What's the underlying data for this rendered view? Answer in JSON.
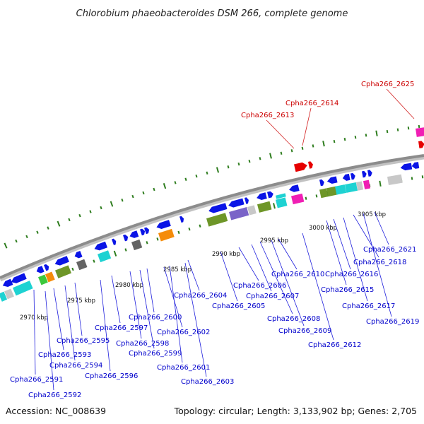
{
  "title": "Chlorobium phaeobacteroides DSM 266, complete genome",
  "accession": "Accession: NC_008639",
  "topology": "Topology: circular; Length: 3,133,902 bp; Genes: 2,705",
  "scale_labels": [
    "2970 kbp",
    "2975 kbp",
    "2980 kbp",
    "2985 kbp",
    "2990 kbp",
    "2995 kbp",
    "3000 kbp",
    "3005 kbp"
  ],
  "genes": [
    {
      "name": "Cpha266_2591",
      "highlight": false
    },
    {
      "name": "Cpha266_2592",
      "highlight": false
    },
    {
      "name": "Cpha266_2593",
      "highlight": false
    },
    {
      "name": "Cpha266_2594",
      "highlight": false
    },
    {
      "name": "Cpha266_2595",
      "highlight": false
    },
    {
      "name": "Cpha266_2596",
      "highlight": false
    },
    {
      "name": "Cpha266_2597",
      "highlight": false
    },
    {
      "name": "Cpha266_2598",
      "highlight": false
    },
    {
      "name": "Cpha266_2599",
      "highlight": false
    },
    {
      "name": "Cpha266_2600",
      "highlight": false
    },
    {
      "name": "Cpha266_2601",
      "highlight": false
    },
    {
      "name": "Cpha266_2602",
      "highlight": false
    },
    {
      "name": "Cpha266_2603",
      "highlight": false
    },
    {
      "name": "Cpha266_2604",
      "highlight": false
    },
    {
      "name": "Cpha266_2605",
      "highlight": false
    },
    {
      "name": "Cpha266_2606",
      "highlight": false
    },
    {
      "name": "Cpha266_2607",
      "highlight": false
    },
    {
      "name": "Cpha266_2608",
      "highlight": false
    },
    {
      "name": "Cpha266_2609",
      "highlight": false
    },
    {
      "name": "Cpha266_2610",
      "highlight": false
    },
    {
      "name": "Cpha266_2612",
      "highlight": false
    },
    {
      "name": "Cpha266_2613",
      "highlight": true
    },
    {
      "name": "Cpha266_2614",
      "highlight": true
    },
    {
      "name": "Cpha266_2615",
      "highlight": false
    },
    {
      "name": "Cpha266_2616",
      "highlight": false
    },
    {
      "name": "Cpha266_2617",
      "highlight": false
    },
    {
      "name": "Cpha266_2618",
      "highlight": false
    },
    {
      "name": "Cpha266_2619",
      "highlight": false
    },
    {
      "name": "Cpha266_2621",
      "highlight": false
    },
    {
      "name": "Cpha266_2625",
      "highlight": true
    }
  ],
  "colors": {
    "gene_forward": "#0a14e6",
    "highlight": "#e60000",
    "backbone": "#8c8c8c",
    "tick": "#2e7d1e",
    "label_line": "#1e1edc",
    "label_line_red": "#d21e1e",
    "feature_cyan": "#1ed2d2",
    "feature_green": "#6e9628",
    "feature_orange": "#f58c0a",
    "feature_gray": "#c8c8c8",
    "feature_darkgray": "#646464",
    "feature_magenta": "#f01eb4",
    "feature_purple": "#7a64c8",
    "feature_lime": "#3cc83c"
  }
}
